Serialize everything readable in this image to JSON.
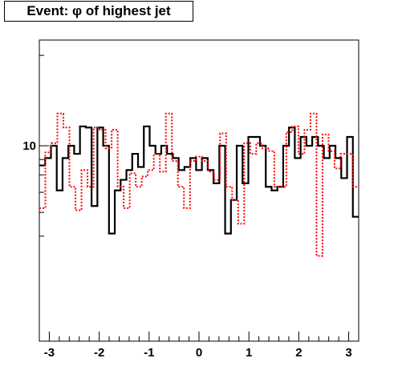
{
  "chart_data": {
    "type": "line",
    "title": "Event: φ of highest jet",
    "xlabel": "",
    "ylabel": "",
    "x_range": [
      -3.2,
      3.2
    ],
    "y_scale": "log",
    "x_ticks": [
      "-3",
      "-2",
      "-1",
      "0",
      "1",
      "2",
      "3"
    ],
    "y_ticks": [
      "10"
    ],
    "grid": false,
    "legend": "none",
    "series": [
      {
        "color": "#000000",
        "style": "solid",
        "values": [
          8.6,
          9.1,
          10,
          7.1,
          9.1,
          10,
          9.4,
          11.6,
          11.5,
          6.3,
          11.5,
          10,
          5.1,
          7.1,
          7.7,
          8.3,
          9.4,
          8.5,
          11.6,
          10,
          9.4,
          10,
          9.4,
          9.1,
          8.3,
          8.5,
          9.1,
          8.3,
          9.1,
          8.3,
          7.5,
          10,
          5.1,
          6.6,
          10,
          7.5,
          10.7,
          10.7,
          10,
          7.3,
          7.1,
          7.3,
          10,
          11.5,
          9.1,
          10.7,
          10,
          10.7,
          10,
          9.1,
          10,
          9.1,
          7.8,
          10.7,
          5.8
        ]
      },
      {
        "color": "#ff0000",
        "style": "dotted",
        "values": [
          6.2,
          9.5,
          10.2,
          12.8,
          11.5,
          7.3,
          6.1,
          8.3,
          7.3,
          11.5,
          11.3,
          9.8,
          11.3,
          7.3,
          6.2,
          8.1,
          7.3,
          7.9,
          8.3,
          9.4,
          8.2,
          12.8,
          8.9,
          7.3,
          6.2,
          8.9,
          9.2,
          8.9,
          8.2,
          7.7,
          11.0,
          7.3,
          6.6,
          5.5,
          10.2,
          9.4,
          10.2,
          9.8,
          9.6,
          7.3,
          7.3,
          11.1,
          11.6,
          9.4,
          11.3,
          12.8,
          4.3,
          10.9,
          9.6,
          8.4,
          9.4,
          9.4,
          7.3
        ]
      }
    ]
  }
}
